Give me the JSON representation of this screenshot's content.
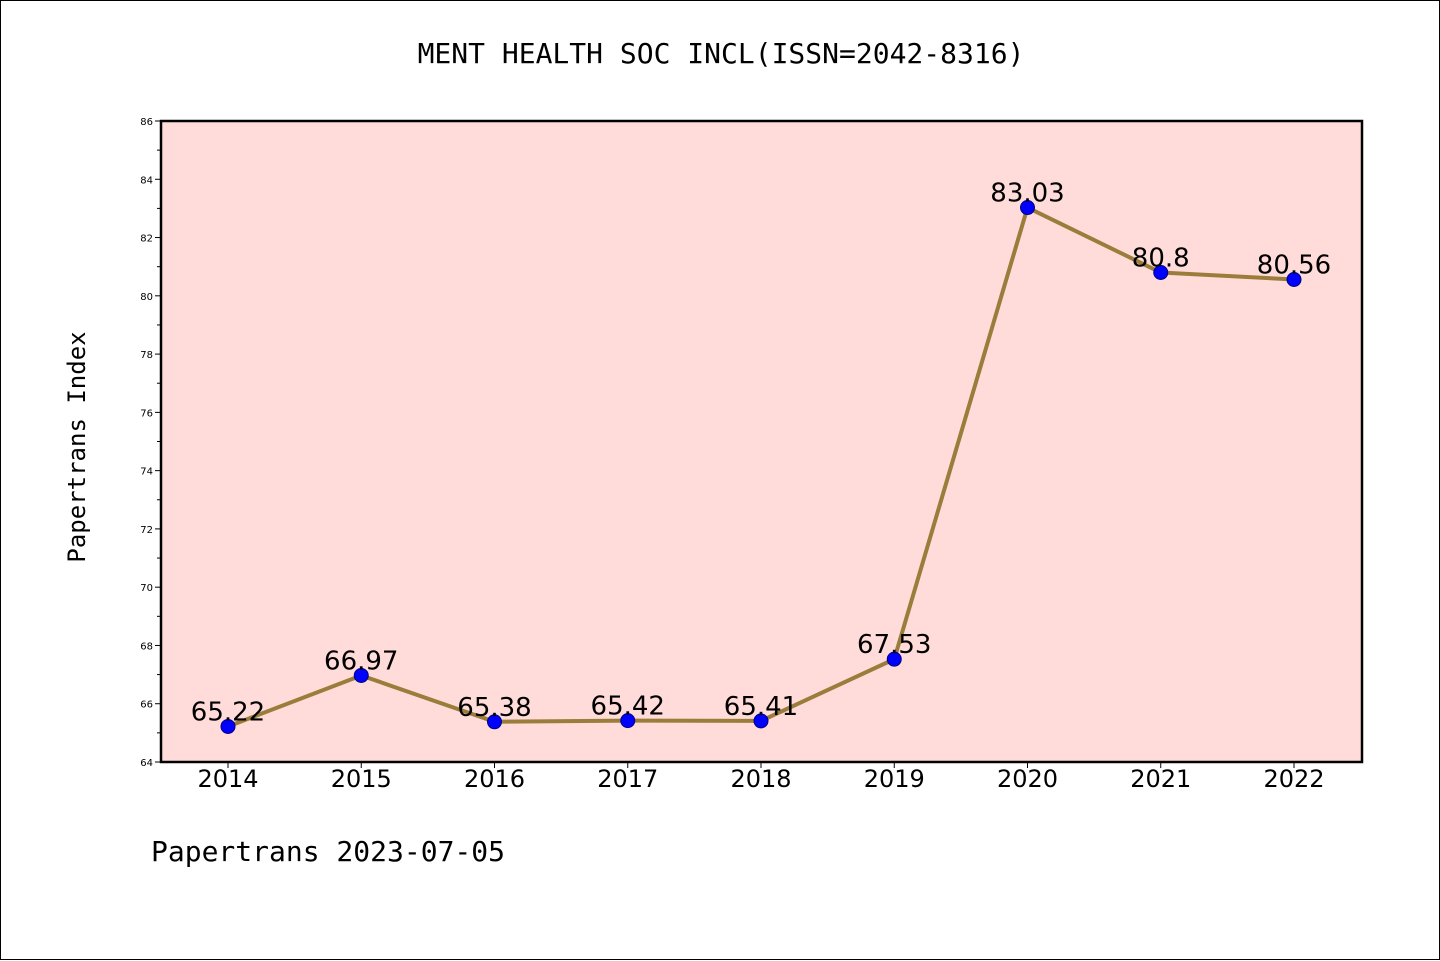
{
  "chart_data": {
    "type": "line",
    "title": "MENT HEALTH SOC INCL(ISSN=2042-8316)",
    "ylabel": "Papertrans Index",
    "xlabel": "",
    "categories": [
      "2014",
      "2015",
      "2016",
      "2017",
      "2018",
      "2019",
      "2020",
      "2021",
      "2022"
    ],
    "series": [
      {
        "values": [
          65.22,
          66.97,
          65.38,
          65.42,
          65.41,
          67.53,
          83.03,
          80.8,
          80.56
        ],
        "data_labels": [
          "65.22",
          "66.97",
          "65.38",
          "65.42",
          "65.41",
          "67.53",
          "83.03",
          "80.8",
          "80.56"
        ]
      }
    ],
    "ylim": [
      64,
      86
    ],
    "y_ticks": [
      "64",
      "66",
      "68",
      "70",
      "72",
      "74",
      "76",
      "78",
      "80",
      "82",
      "84",
      "86"
    ],
    "grid": false,
    "legend": "none",
    "colors": {
      "plot_background": "#ffdcd9",
      "line": "#9a7d3a",
      "marker": "#0000ff",
      "marker_edge": "#000080"
    }
  },
  "footer": "Papertrans 2023-07-05"
}
